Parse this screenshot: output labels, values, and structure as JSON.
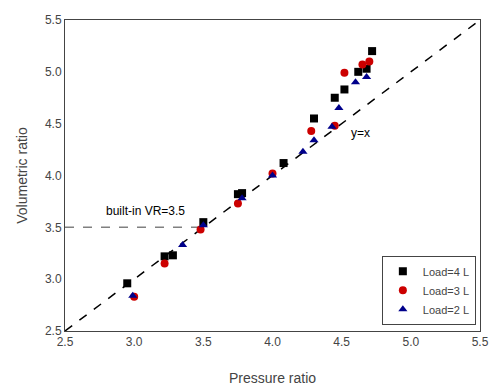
{
  "chart_data": {
    "type": "scatter",
    "x_label": "Pressure ratio",
    "y_label": "Volumetric ratio",
    "series": [
      {
        "type": "line",
        "line_style": "dashed",
        "color": "#000000",
        "x": [
          2.5,
          5.5
        ],
        "values": [
          2.5,
          5.5
        ]
      },
      {
        "type": "line",
        "line_style": "dashed",
        "color": "#808080",
        "x": [
          2.5,
          3.5
        ],
        "values": [
          3.5,
          3.5
        ]
      },
      {
        "name": "Load=4 L",
        "type": "scatter",
        "marker": "square",
        "color": "#000000",
        "x": [
          2.95,
          3.22,
          3.28,
          3.5,
          3.75,
          3.78,
          4.08,
          4.3,
          4.45,
          4.52,
          4.62,
          4.68,
          4.72
        ],
        "values": [
          2.96,
          3.22,
          3.23,
          3.55,
          3.82,
          3.83,
          4.12,
          4.55,
          4.75,
          4.83,
          5.0,
          5.03,
          5.2
        ]
      },
      {
        "name": "Load=3 L",
        "type": "scatter",
        "marker": "circle",
        "color": "#cc0000",
        "x": [
          3.0,
          3.22,
          3.48,
          3.75,
          4.0,
          4.28,
          4.45,
          4.52,
          4.65,
          4.7
        ],
        "values": [
          2.83,
          3.15,
          3.48,
          3.73,
          4.02,
          4.43,
          4.48,
          4.99,
          5.07,
          5.1
        ]
      },
      {
        "name": "Load=2 L",
        "type": "scatter",
        "marker": "triangle-up",
        "color": "#00008B",
        "x": [
          2.99,
          3.35,
          3.5,
          3.78,
          4.0,
          4.22,
          4.3,
          4.43,
          4.48,
          4.6,
          4.68
        ],
        "values": [
          2.84,
          3.33,
          3.52,
          3.78,
          4.0,
          4.23,
          4.34,
          4.47,
          4.65,
          4.9,
          4.95
        ]
      }
    ],
    "annotations": [
      {
        "text": "y=x",
        "x": 4.55,
        "y": 4.32
      },
      {
        "text": "built-in VR=3.5",
        "x": 2.78,
        "y": 3.57
      }
    ],
    "xlim": [
      2.5,
      5.5
    ],
    "ylim": [
      2.5,
      5.5
    ],
    "xticks": [
      2.5,
      {
        "value": 3.0,
        "label": "3.0"
      },
      3.5,
      {
        "value": 4.0,
        "label": "4.0"
      },
      4.5,
      {
        "value": 5.0,
        "label": "5.0"
      },
      5.5
    ],
    "yticks": [
      2.5,
      {
        "value": 3.0,
        "label": "3.0"
      },
      3.5,
      {
        "value": 4.0,
        "label": "4.0"
      },
      4.5,
      {
        "value": 5.0,
        "label": "5.0"
      },
      5.5
    ],
    "grid": false,
    "legend": "lower right"
  }
}
